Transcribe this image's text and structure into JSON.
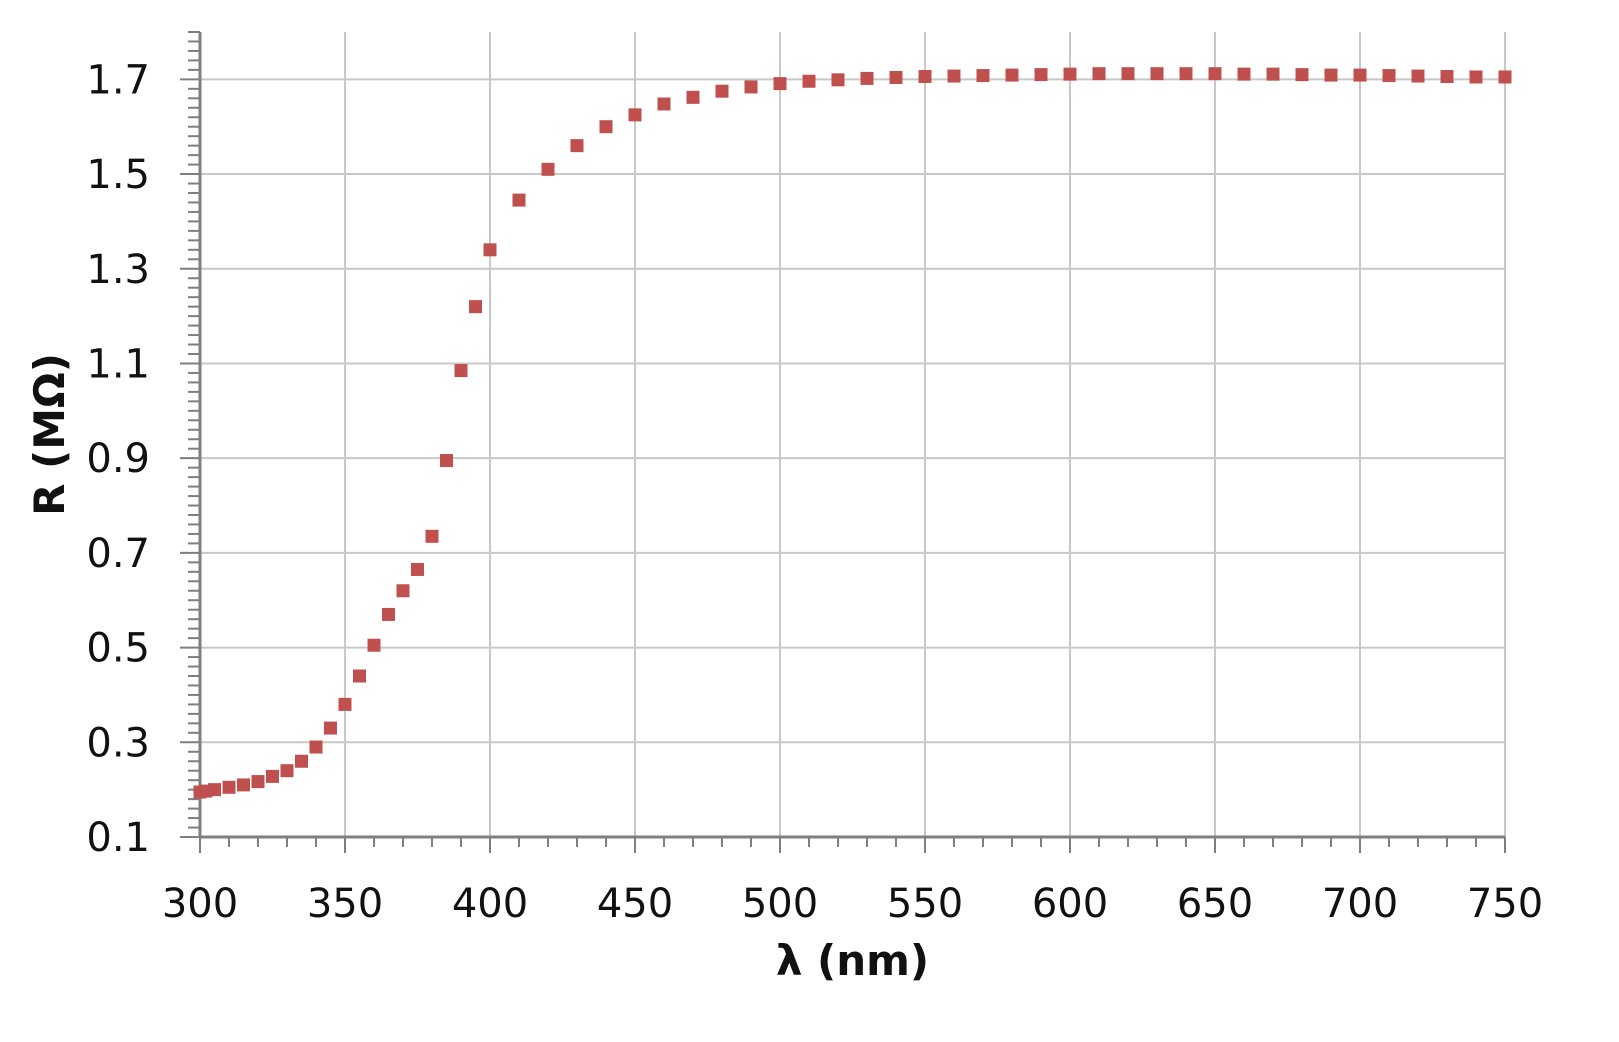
{
  "chart_data": {
    "type": "scatter",
    "title": "",
    "xlabel": "λ (nm)",
    "ylabel": "R (MΩ)",
    "xlim": [
      300,
      750
    ],
    "ylim": [
      0.1,
      1.8
    ],
    "x_ticks": [
      300,
      350,
      400,
      450,
      500,
      550,
      600,
      650,
      700,
      750
    ],
    "x_tick_labels": [
      "300",
      "350",
      "400",
      "450",
      "500",
      "550",
      "600",
      "650",
      "700",
      "750"
    ],
    "y_ticks": [
      0.1,
      0.3,
      0.5,
      0.7,
      0.9,
      1.1,
      1.3,
      1.5,
      1.7
    ],
    "y_tick_labels": [
      "0.1",
      "0.3",
      "0.5",
      "0.7",
      "0.9",
      "1.1",
      "1.3",
      "1.5",
      "1.7"
    ],
    "grid": true,
    "legend": "none",
    "marker": "square",
    "colors": {
      "series": "#c0504d",
      "grid": "#c8c8c8",
      "axis": "#7f7f7f"
    },
    "series": [
      {
        "x": [
          300,
          302,
          305,
          310,
          315,
          320,
          325,
          330,
          335,
          340,
          345,
          350,
          355,
          360,
          365,
          370,
          375,
          380,
          385,
          390,
          395,
          400,
          410,
          420,
          430,
          440,
          450,
          460,
          470,
          480,
          490,
          500,
          510,
          520,
          530,
          540,
          550,
          560,
          570,
          580,
          590,
          600,
          610,
          620,
          630,
          640,
          650,
          660,
          670,
          680,
          690,
          700,
          710,
          720,
          730,
          740,
          750
        ],
        "y": [
          0.195,
          0.197,
          0.2,
          0.205,
          0.21,
          0.217,
          0.228,
          0.24,
          0.26,
          0.29,
          0.33,
          0.38,
          0.44,
          0.505,
          0.57,
          0.62,
          0.665,
          0.735,
          0.895,
          1.085,
          1.22,
          1.34,
          1.445,
          1.51,
          1.56,
          1.6,
          1.625,
          1.648,
          1.662,
          1.675,
          1.684,
          1.691,
          1.696,
          1.699,
          1.702,
          1.704,
          1.706,
          1.707,
          1.708,
          1.709,
          1.71,
          1.711,
          1.712,
          1.712,
          1.712,
          1.712,
          1.712,
          1.711,
          1.711,
          1.71,
          1.709,
          1.709,
          1.708,
          1.707,
          1.706,
          1.705,
          1.705
        ]
      }
    ]
  }
}
